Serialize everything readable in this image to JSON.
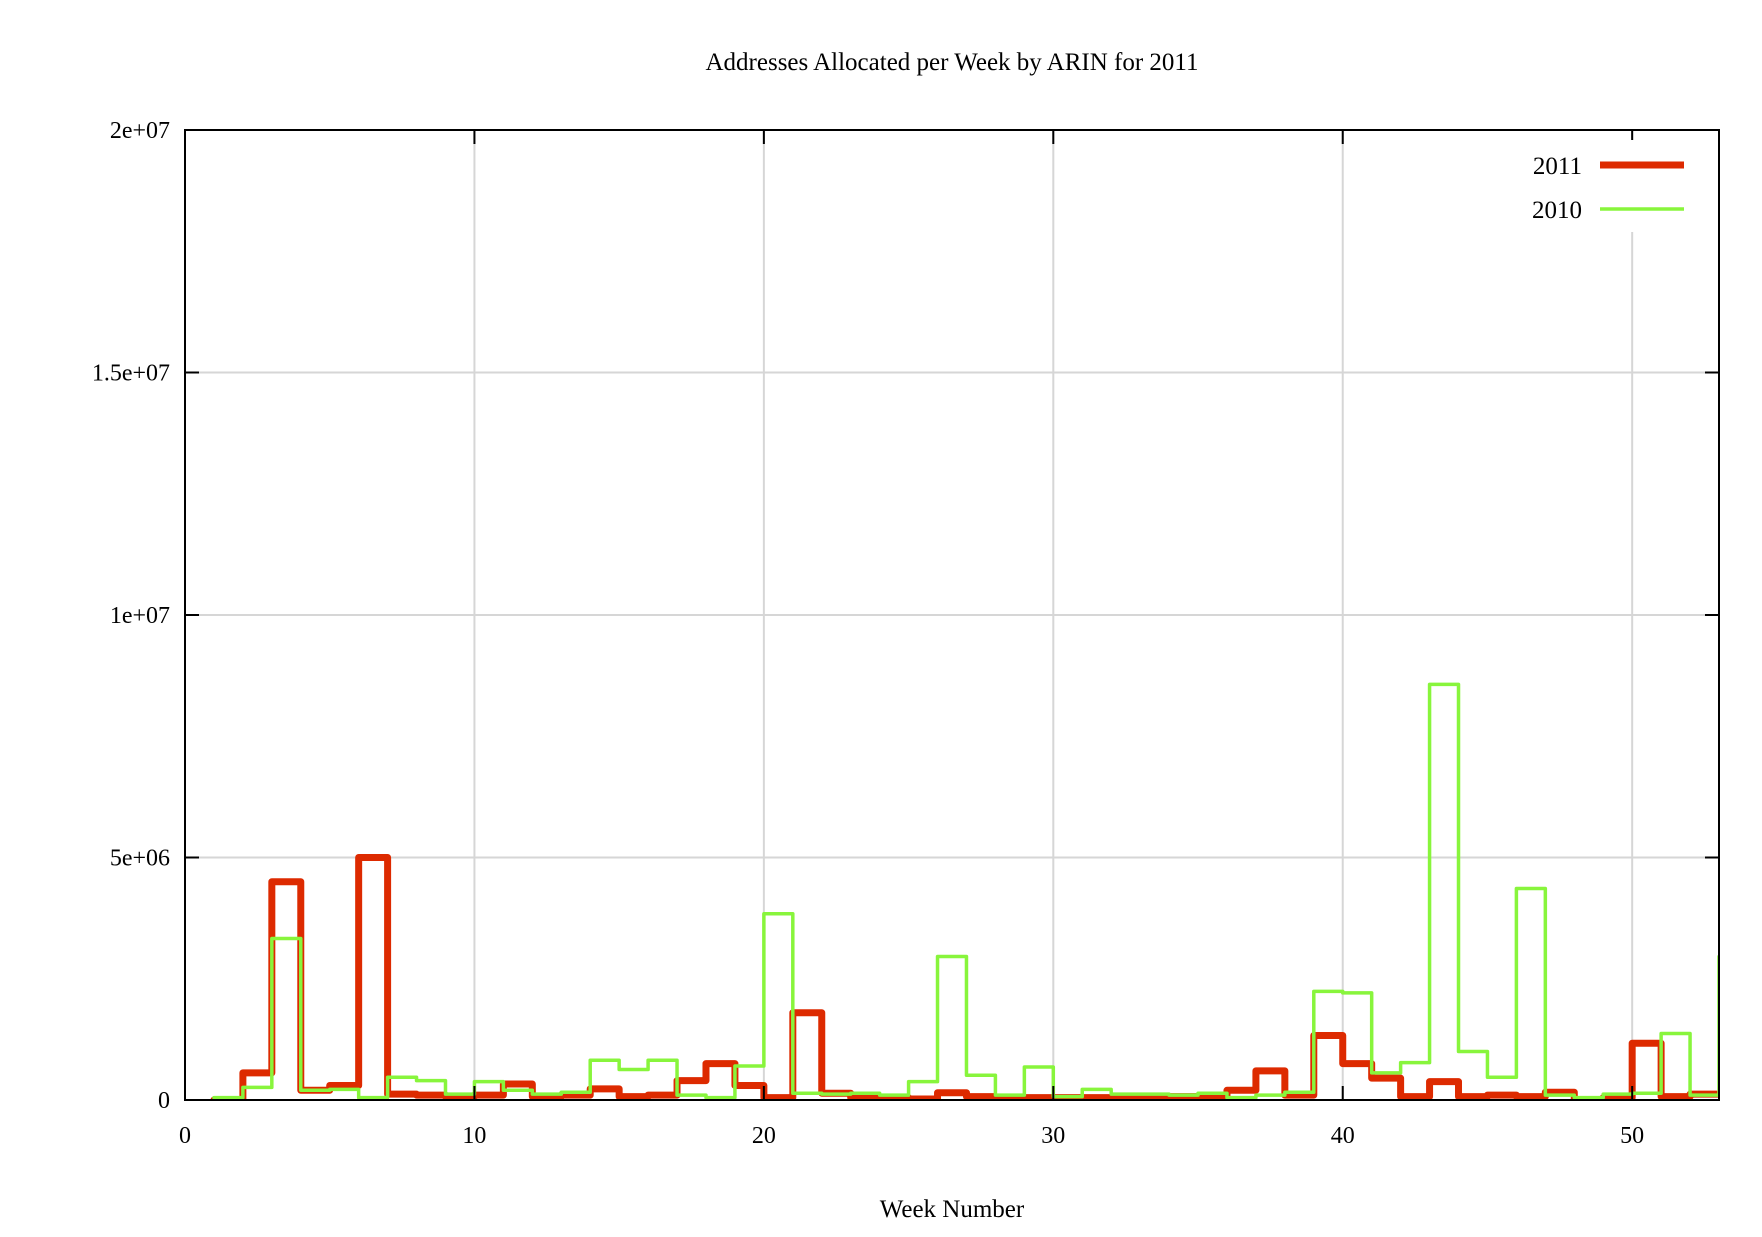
{
  "chart_data": {
    "type": "line",
    "style": "steps",
    "title": "Addresses Allocated per Week by ARIN for 2011",
    "xlabel": "Week Number",
    "ylabel": "",
    "xlim": [
      0,
      53
    ],
    "ylim": [
      0,
      20000000
    ],
    "xticks": [
      0,
      10,
      20,
      30,
      40,
      50
    ],
    "xtick_labels": [
      "0",
      "10",
      "20",
      "30",
      "40",
      "50"
    ],
    "yticks": [
      0,
      5000000,
      10000000,
      15000000,
      20000000
    ],
    "ytick_labels": [
      "0",
      "5e+06",
      "1e+07",
      "1.5e+07",
      "2e+07"
    ],
    "grid": true,
    "legend_position": "top-right",
    "x": [
      1,
      2,
      3,
      4,
      5,
      6,
      7,
      8,
      9,
      10,
      11,
      12,
      13,
      14,
      15,
      16,
      17,
      18,
      19,
      20,
      21,
      22,
      23,
      24,
      25,
      26,
      27,
      28,
      29,
      30,
      31,
      32,
      33,
      34,
      35,
      36,
      37,
      38,
      39,
      40,
      41,
      42,
      43,
      44,
      45,
      46,
      47,
      48,
      49,
      50,
      51,
      52,
      53
    ],
    "series": [
      {
        "name": "2011",
        "color": "#dd2a00",
        "values": [
          0,
          560000,
          4500000,
          200000,
          300000,
          5000000,
          120000,
          100000,
          70000,
          100000,
          330000,
          70000,
          100000,
          230000,
          70000,
          100000,
          400000,
          750000,
          300000,
          50000,
          1800000,
          140000,
          50000,
          50000,
          20000,
          150000,
          70000,
          20000,
          50000,
          50000,
          50000,
          50000,
          50000,
          70000,
          70000,
          200000,
          600000,
          100000,
          1330000,
          750000,
          450000,
          70000,
          380000,
          70000,
          100000,
          70000,
          160000,
          10000,
          50000,
          1170000,
          70000,
          120000,
          120000
        ]
      },
      {
        "name": "2010",
        "color": "#88f53c",
        "values": [
          50000,
          260000,
          3330000,
          200000,
          220000,
          50000,
          470000,
          400000,
          120000,
          380000,
          200000,
          120000,
          160000,
          820000,
          630000,
          820000,
          100000,
          50000,
          700000,
          3840000,
          140000,
          120000,
          140000,
          100000,
          380000,
          2960000,
          510000,
          100000,
          680000,
          70000,
          220000,
          120000,
          120000,
          100000,
          140000,
          50000,
          100000,
          160000,
          2240000,
          2210000,
          560000,
          770000,
          8570000,
          1000000,
          470000,
          4360000,
          100000,
          50000,
          120000,
          140000,
          1370000,
          100000,
          2960000
        ]
      }
    ]
  }
}
